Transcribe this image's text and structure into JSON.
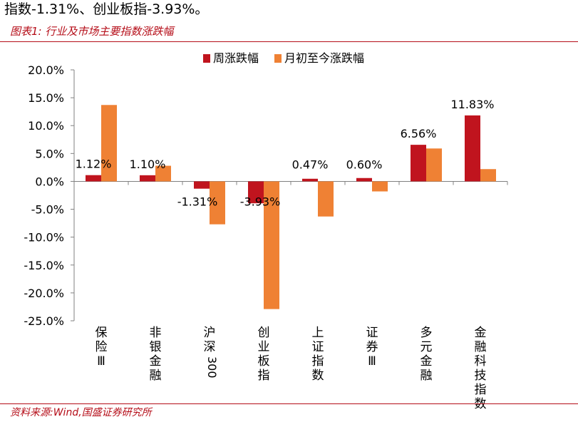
{
  "intro_text": "指数-1.31%、创业板指-3.93%。",
  "figure_title": "图表1:  行业及市场主要指数涨跌幅",
  "source": "资料来源:Wind,国盛证券研究所",
  "colors": {
    "weekly": "#c0141e",
    "mtd": "#ef8134",
    "accent": "#b50d18"
  },
  "chart_data": {
    "type": "bar",
    "categories": [
      "保险Ⅲ",
      "非银金融",
      "沪深300",
      "创业板指",
      "上证指数",
      "证券Ⅲ",
      "多元金融",
      "金融科技指数"
    ],
    "series": [
      {
        "name": "周涨跌幅",
        "values": [
          1.12,
          1.1,
          -1.31,
          -3.93,
          0.47,
          0.6,
          6.56,
          11.83
        ],
        "labels": [
          "1.12%",
          "1.10%",
          "-1.31%",
          "-3.93%",
          "0.47%",
          "0.60%",
          "6.56%",
          "11.83%"
        ]
      },
      {
        "name": "月初至今涨跌幅",
        "values": [
          13.7,
          2.8,
          -7.7,
          -22.9,
          -6.3,
          -1.8,
          5.9,
          2.2
        ]
      }
    ],
    "yticks": [
      "20.0%",
      "15.0%",
      "10.0%",
      "5.0%",
      "0.0%",
      "-5.0%",
      "-10.0%",
      "-15.0%",
      "-20.0%",
      "-25.0%"
    ],
    "ylim": [
      -25,
      20
    ],
    "legend_position": "top-center",
    "grid": false
  }
}
